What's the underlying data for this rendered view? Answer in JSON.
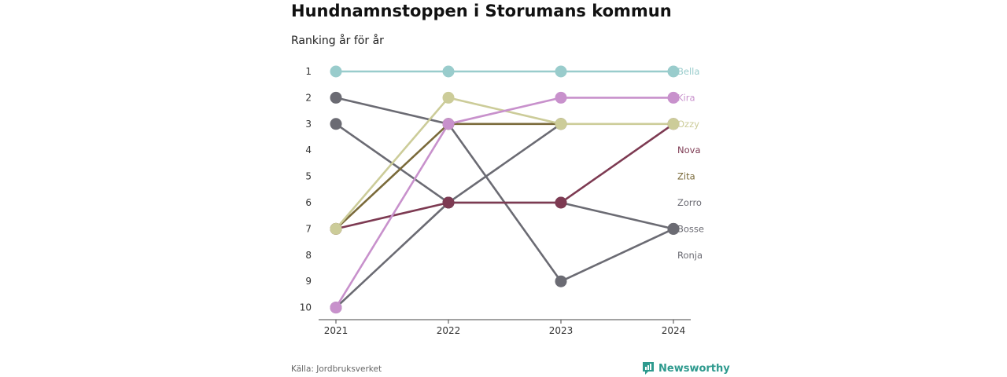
{
  "title": "Hundnamnstoppen i Storumans kommun",
  "subtitle": "Ranking år för år",
  "source": "Källa: Jordbruksverket",
  "brand": {
    "name": "Newsworthy",
    "icon": "newsworthy-logo-icon",
    "color": "#2e9a8e"
  },
  "chart_data": {
    "type": "line",
    "x": [
      "2021",
      "2022",
      "2023",
      "2024"
    ],
    "y_ticks": [
      "1",
      "2",
      "3",
      "4",
      "5",
      "6",
      "7",
      "8",
      "9",
      "10"
    ],
    "ylim": [
      1,
      10
    ],
    "y_reversed": true,
    "grid": false,
    "series": [
      {
        "name": "Ronja",
        "color": "#6b6b73",
        "values": [
          3,
          6,
          3,
          null
        ]
      },
      {
        "name": "Bosse",
        "color": "#6b6b73",
        "values": [
          2,
          3,
          9,
          7
        ]
      },
      {
        "name": "Zorro",
        "color": "#6b6b73",
        "values": [
          10,
          6,
          6,
          7
        ]
      },
      {
        "name": "Zita",
        "color": "#7a6a3a",
        "values": [
          7,
          3,
          3,
          null
        ]
      },
      {
        "name": "Nova",
        "color": "#7d3a52",
        "values": [
          7,
          6,
          6,
          3
        ]
      },
      {
        "name": "Ozzy",
        "color": "#cccc99",
        "values": [
          7,
          2,
          3,
          3
        ]
      },
      {
        "name": "Kira",
        "color": "#c891cc",
        "values": [
          10,
          3,
          2,
          2
        ]
      },
      {
        "name": "Bella",
        "color": "#99cccc",
        "values": [
          1,
          1,
          1,
          1
        ]
      }
    ]
  }
}
